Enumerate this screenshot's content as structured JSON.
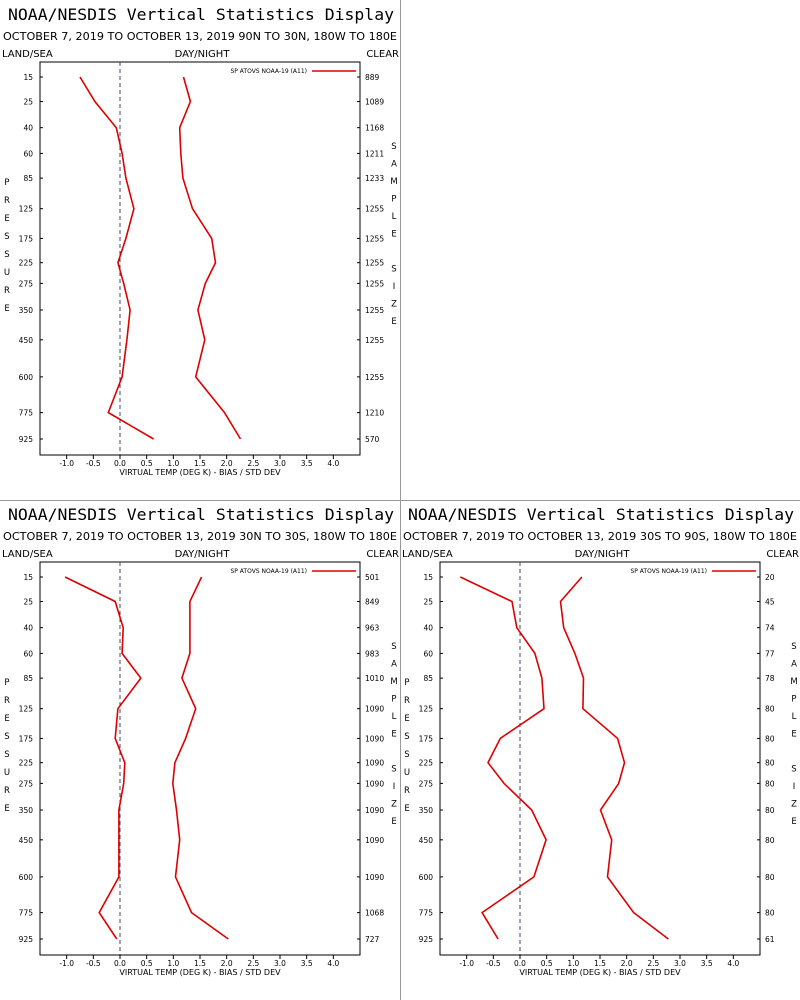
{
  "chart_data": [
    {
      "type": "line",
      "orientation": "horizontal",
      "title": "NOAA/NESDIS Vertical Statistics Display",
      "subtitle": "OCTOBER 7, 2019 TO OCTOBER 13, 2019 90N TO 30N, 180W TO 180E",
      "left_header": "LAND/SEA",
      "center_header": "DAY/NIGHT",
      "right_header": "CLEAR",
      "y_label": "PRESSURE",
      "y2_label": "SAMPLE SIZE",
      "x_label": "VIRTUAL TEMP (DEG K) - BIAS / STD DEV",
      "legend": "SP ATOVS NOAA-19 (A11)",
      "categories": [
        "15",
        "25",
        "40",
        "60",
        "85",
        "125",
        "175",
        "225",
        "275",
        "350",
        "450",
        "600",
        "775",
        "925"
      ],
      "series": [
        {
          "color": "#dd0000",
          "values": [
            -0.75,
            -0.47,
            -0.07,
            0.04,
            0.11,
            0.26,
            0.11,
            -0.04,
            0.07,
            0.19,
            0.13,
            0.04,
            -0.22,
            0.63
          ]
        },
        {
          "color": "#dd0000",
          "values": [
            1.19,
            1.32,
            1.12,
            1.14,
            1.18,
            1.36,
            1.72,
            1.79,
            1.6,
            1.46,
            1.59,
            1.42,
            1.96,
            2.26
          ]
        }
      ],
      "sample_size": [
        889,
        1089,
        1168,
        1211,
        1233,
        1255,
        1255,
        1255,
        1255,
        1255,
        1255,
        1255,
        1210,
        570
      ],
      "xlim": [
        -1.5,
        4.5
      ],
      "xticks": [
        {
          "value": -1,
          "label": "-1.0"
        },
        {
          "value": -0.5,
          "label": "-0.5"
        },
        {
          "value": 0,
          "label": "0.0"
        },
        {
          "value": 0.5,
          "label": "0.5"
        },
        {
          "value": 1,
          "label": "1.0"
        },
        {
          "value": 1.5,
          "label": "1.5"
        },
        {
          "value": 2,
          "label": "2.0"
        },
        {
          "value": 2.5,
          "label": "2.5"
        },
        {
          "value": 3,
          "label": "3.0"
        },
        {
          "value": 3.5,
          "label": "3.5"
        },
        {
          "value": 4,
          "label": "4.0"
        }
      ]
    },
    {
      "type": "line",
      "orientation": "horizontal",
      "title": "NOAA/NESDIS Vertical Statistics Display",
      "subtitle": "OCTOBER 7, 2019 TO OCTOBER 13, 2019 30N TO 30S, 180W TO 180E",
      "left_header": "LAND/SEA",
      "center_header": "DAY/NIGHT",
      "right_header": "CLEAR",
      "y_label": "PRESSURE",
      "y2_label": "SAMPLE SIZE",
      "x_label": "VIRTUAL TEMP (DEG K) - BIAS / STD DEV",
      "legend": "SP ATOVS NOAA-19 (A11)",
      "categories": [
        "15",
        "25",
        "40",
        "60",
        "85",
        "125",
        "175",
        "225",
        "275",
        "350",
        "450",
        "600",
        "775",
        "925"
      ],
      "series": [
        {
          "color": "#dd0000",
          "values": [
            -1.03,
            -0.09,
            0.06,
            0.04,
            0.39,
            -0.04,
            -0.09,
            0.09,
            0.07,
            -0.02,
            -0.02,
            -0.02,
            -0.39,
            -0.06
          ]
        },
        {
          "color": "#dd0000",
          "values": [
            1.53,
            1.31,
            1.31,
            1.31,
            1.16,
            1.42,
            1.23,
            1.03,
            0.99,
            1.06,
            1.12,
            1.04,
            1.34,
            2.03
          ]
        }
      ],
      "sample_size": [
        501,
        849,
        963,
        983,
        1010,
        1090,
        1090,
        1090,
        1090,
        1090,
        1090,
        1090,
        1068,
        727
      ],
      "xlim": [
        -1.5,
        4.5
      ],
      "xticks": [
        {
          "value": -1,
          "label": "-1.0"
        },
        {
          "value": -0.5,
          "label": "-0.5"
        },
        {
          "value": 0,
          "label": "0.0"
        },
        {
          "value": 0.5,
          "label": "0.5"
        },
        {
          "value": 1,
          "label": "1.0"
        },
        {
          "value": 1.5,
          "label": "1.5"
        },
        {
          "value": 2,
          "label": "2.0"
        },
        {
          "value": 2.5,
          "label": "2.5"
        },
        {
          "value": 3,
          "label": "3.0"
        },
        {
          "value": 3.5,
          "label": "3.5"
        },
        {
          "value": 4,
          "label": "4.0"
        }
      ]
    },
    {
      "type": "line",
      "orientation": "horizontal",
      "title": "NOAA/NESDIS Vertical Statistics Display",
      "subtitle": "OCTOBER 7, 2019 TO OCTOBER 13, 2019 30S TO 90S, 180W TO 180E",
      "left_header": "LAND/SEA",
      "center_header": "DAY/NIGHT",
      "right_header": "CLEAR",
      "y_label": "PRESSURE",
      "y2_label": "SAMPLE SIZE",
      "x_label": "VIRTUAL TEMP (DEG K) - BIAS / STD DEV",
      "legend": "SP ATOVS NOAA-19 (A11)",
      "categories": [
        "15",
        "25",
        "40",
        "60",
        "85",
        "125",
        "175",
        "225",
        "275",
        "350",
        "450",
        "600",
        "775",
        "925"
      ],
      "series": [
        {
          "color": "#dd0000",
          "values": [
            -1.12,
            -0.15,
            -0.06,
            0.28,
            0.41,
            0.45,
            -0.37,
            -0.6,
            -0.3,
            0.22,
            0.49,
            0.26,
            -0.71,
            -0.41
          ]
        },
        {
          "color": "#dd0000",
          "values": [
            1.16,
            0.76,
            0.82,
            1.03,
            1.19,
            1.18,
            1.83,
            1.96,
            1.85,
            1.51,
            1.72,
            1.64,
            2.13,
            2.78
          ]
        }
      ],
      "sample_size": [
        20,
        45,
        74,
        77,
        78,
        80,
        80,
        80,
        80,
        80,
        80,
        80,
        80,
        61
      ],
      "xlim": [
        -1.5,
        4.5
      ],
      "xticks": [
        {
          "value": -1,
          "label": "-1.0"
        },
        {
          "value": -0.5,
          "label": "-0.5"
        },
        {
          "value": 0,
          "label": "0.0"
        },
        {
          "value": 0.5,
          "label": "0.5"
        },
        {
          "value": 1,
          "label": "1.0"
        },
        {
          "value": 1.5,
          "label": "1.5"
        },
        {
          "value": 2,
          "label": "2.0"
        },
        {
          "value": 2.5,
          "label": "2.5"
        },
        {
          "value": 3,
          "label": "3.0"
        },
        {
          "value": 3.5,
          "label": "3.5"
        },
        {
          "value": 4,
          "label": "4.0"
        }
      ]
    }
  ]
}
